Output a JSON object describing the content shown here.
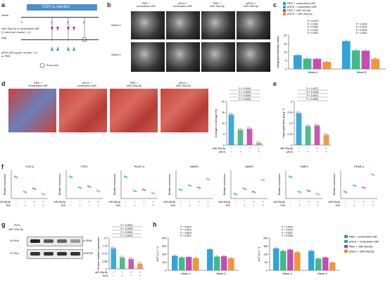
{
  "panels": {
    "a": {
      "letter": "a",
      "injection_label": "CCl4 i.p. injection",
      "week_label": "Week",
      "weeks": [
        "0",
        "4",
        "5",
        "6"
      ],
      "day_label": "Day",
      "mir_label": "miR-30a-5p or scrambled-miR\n(1 nmol per mouse, i.v.)",
      "pRLN_label": "pRLN (50 μg per mouse, i.v.)\nor PBS",
      "endpoint_label": "End point"
    },
    "b": {
      "letter": "b",
      "columns": [
        "PBS +\nscrambled-miR",
        "pRLN +\nscrambled-miR",
        "PBS +\nmiR-30a-5p",
        "pRLN +\nmiR-30a-5p"
      ],
      "rows": [
        "Week 4",
        "Week 5"
      ]
    },
    "c": {
      "letter": "c",
      "ylabel": "Integrated intensity (ratio)",
      "xlabels": [
        "Week 4",
        "Week 5"
      ]
    },
    "d": {
      "letter": "d",
      "columns": [
        "PBS +\nScrambled-miR",
        "pRLN +\nscrambled-miR",
        "PBS +\nmiR-30a-5p",
        "pRLN +\nmiR-30a-5p"
      ],
      "ylabel": "Collagen coverage (%)",
      "row1": "miR-30a-5p",
      "row2": "pRLN"
    },
    "e": {
      "letter": "e",
      "ylabel": "Hydroxyproline (μg g⁻¹)",
      "row1": "miR-30a-5p",
      "row2": "pRLN"
    },
    "f": {
      "letter": "f",
      "genes": [
        "TGF-β",
        "FSP1",
        "PDGF-α",
        "MMP2",
        "MMP9",
        "TIMP1",
        "PPAR-γ"
      ],
      "ylabel": "Relative expression",
      "row1": "miR-30a-5p",
      "row2": "RLN"
    },
    "g": {
      "letter": "g",
      "rows": [
        "RLN",
        "miR-30a-5p"
      ],
      "markers": [
        "40 kDa",
        "37 kDa"
      ],
      "proteins": [
        "α-SMA",
        "GAPDH"
      ],
      "ylabel": "Protein relative expression",
      "row1": "miR-30a-5p",
      "row2": "RLN"
    },
    "h": {
      "letter": "h",
      "ast_ylabel": "AST (U L⁻¹)",
      "alt_ylabel": "ALT (U L⁻¹)",
      "xlabels": [
        "Week 4",
        "Week 5"
      ]
    }
  },
  "legend": [
    {
      "label": "PBS + scrambled-miR",
      "color": "#1a9ad6"
    },
    {
      "label": "pRLN + scrambled-miR",
      "color": "#2bb37a"
    },
    {
      "label": "PBS + miR-30a-5p",
      "color": "#c03aa6"
    },
    {
      "label": "pRLN + miR-30a-5p",
      "color": "#f08a24"
    }
  ],
  "chart_data": [
    {
      "type": "bar",
      "panel": "c",
      "categories": [
        "Week 4",
        "Week 5"
      ],
      "series": [
        {
          "name": "PBS + scrambled-miR",
          "values": [
            8.2,
            16.5
          ]
        },
        {
          "name": "pRLN + scrambled-miR",
          "values": [
            6.1,
            11.0
          ]
        },
        {
          "name": "PBS + miR-30a-5p",
          "values": [
            6.0,
            10.8
          ]
        },
        {
          "name": "pRLN + miR-30a-5p",
          "values": [
            4.2,
            6.0
          ]
        }
      ],
      "ylim": [
        0,
        20
      ]
    },
    {
      "type": "bar",
      "panel": "d",
      "categories": [
        "1",
        "2",
        "3",
        "4"
      ],
      "values": [
        14,
        7,
        7.5,
        1
      ],
      "ylim": [
        0,
        20
      ]
    },
    {
      "type": "bar",
      "panel": "e",
      "categories": [
        "1",
        "2",
        "3",
        "4"
      ],
      "values": [
        2.2,
        1.3,
        1.35,
        0.7
      ],
      "ylim": [
        0,
        3
      ]
    },
    {
      "type": "bar",
      "panel": "g",
      "categories": [
        "1",
        "2",
        "3",
        "4"
      ],
      "values": [
        1.0,
        0.55,
        0.48,
        0.25
      ],
      "ylim": [
        0,
        1.5
      ]
    },
    {
      "type": "bar",
      "panel": "h-ast",
      "categories": [
        "Week 4",
        "Week 5"
      ],
      "series": [
        {
          "name": "PBS + scrambled-miR",
          "values": [
            180,
            260
          ]
        },
        {
          "name": "pRLN + scrambled-miR",
          "values": [
            160,
            170
          ]
        },
        {
          "name": "PBS + miR-30a-5p",
          "values": [
            165,
            175
          ]
        },
        {
          "name": "pRLN + miR-30a-5p",
          "values": [
            150,
            150
          ]
        }
      ],
      "ylim": [
        0,
        400
      ]
    },
    {
      "type": "bar",
      "panel": "h-alt",
      "categories": [
        "Week 4",
        "Week 5"
      ],
      "series": [
        {
          "name": "PBS + scrambled-miR",
          "values": [
            170,
            150
          ]
        },
        {
          "name": "pRLN + scrambled-miR",
          "values": [
            150,
            90
          ]
        },
        {
          "name": "PBS + miR-30a-5p",
          "values": [
            160,
            100
          ]
        },
        {
          "name": "pRLN + miR-30a-5p",
          "values": [
            140,
            60
          ]
        }
      ],
      "ylim": [
        0,
        250
      ]
    }
  ],
  "pvalues": {
    "c": [
      "P < 0.0001",
      "P = 0.0001",
      "P = 0.0087",
      "P < 0.0001",
      "P = 0.0073",
      "P = 0.0001",
      "P = 0.0149",
      "P = 0.0270",
      "P = 0.0019"
    ],
    "d": [
      "P < 0.0001",
      "P < 0.0001",
      "P < 0.0001",
      "P = 0.0021"
    ],
    "e": [
      "P < 0.0001",
      "P = 0.0011",
      "P = 0.0195",
      "P = 0.0271"
    ],
    "g": [
      "P = 0.0001",
      "P = 0.0014",
      "P = 0.0025",
      "P < 0.0001"
    ],
    "h": [
      "P = 0.0001",
      "P = 0.6618",
      "P = 0.0209",
      "P = 0.0070",
      "P = 0.0258",
      "P = 0.0037",
      "P = 0.0040",
      "P = 0.3444"
    ]
  }
}
